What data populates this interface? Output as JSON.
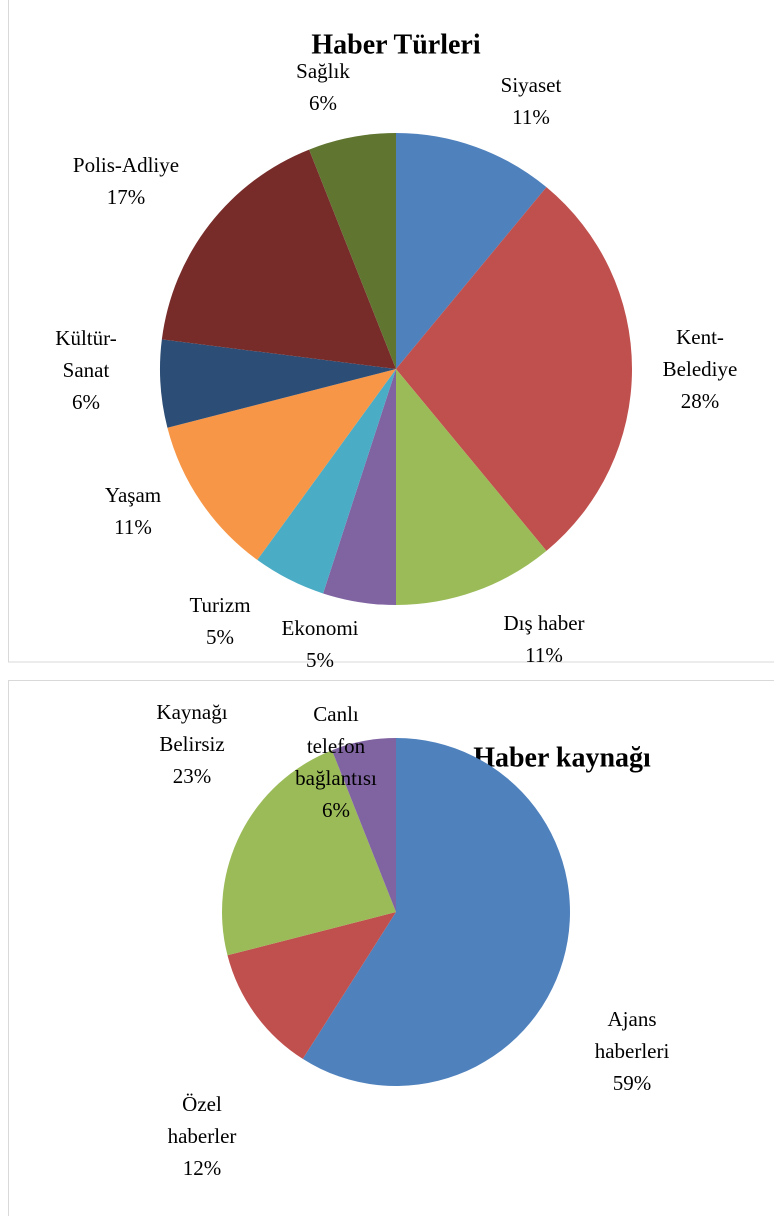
{
  "chart_data": [
    {
      "type": "pie",
      "title": "Haber Türleri",
      "categories": [
        "Siyaset",
        "Kent-Belediye",
        "Dış haber",
        "Ekonomi",
        "Turizm",
        "Yaşam",
        "Kültür-Sanat",
        "Polis-Adliye",
        "Sağlık"
      ],
      "values": [
        11,
        28,
        11,
        5,
        5,
        11,
        6,
        17,
        6
      ],
      "value_labels": [
        "11%",
        "28%",
        "11%",
        "5%",
        "5%",
        "11%",
        "6%",
        "17%",
        "6%"
      ],
      "colors": [
        "#4f81bd",
        "#c0504d",
        "#9bbb59",
        "#8064a2",
        "#4bacc6",
        "#f79646",
        "#2c4d75",
        "#772c2a",
        "#5f7530"
      ]
    },
    {
      "type": "pie",
      "title": "Haber kaynağı",
      "categories": [
        "Ajans haberleri",
        "Özel haberler",
        "Kaynağı Belirsiz",
        "Canlı telefon bağlantısı"
      ],
      "values": [
        59,
        12,
        23,
        6
      ],
      "value_labels": [
        "59%",
        "12%",
        "23%",
        "6%"
      ],
      "colors": [
        "#4f81bd",
        "#c0504d",
        "#9bbb59",
        "#8064a2"
      ]
    }
  ]
}
